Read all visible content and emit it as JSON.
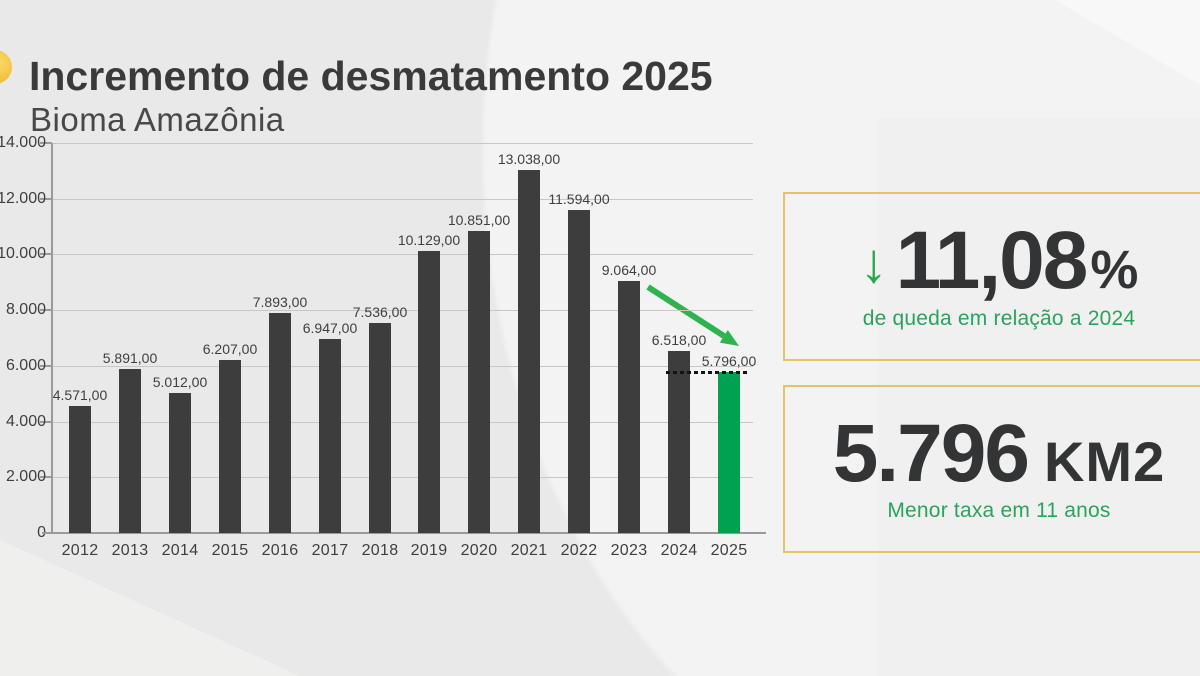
{
  "header": {
    "title": "Incremento de desmatamento 2025",
    "subtitle": "Bioma Amazônia"
  },
  "chart_data": {
    "type": "bar",
    "title": "Incremento de desmatamento 2025 - Bioma Amazônia",
    "xlabel": "",
    "ylabel": "",
    "categories": [
      "2012",
      "2013",
      "2014",
      "2015",
      "2016",
      "2017",
      "2018",
      "2019",
      "2020",
      "2021",
      "2022",
      "2023",
      "2024",
      "2025"
    ],
    "values": [
      4571,
      5891,
      5012,
      6207,
      7893,
      6947,
      7536,
      10129,
      10851,
      13038,
      11594,
      9064,
      6518,
      5796
    ],
    "bar_labels": [
      "4.571,00",
      "5.891,00",
      "5.012,00",
      "6.207,00",
      "7.893,00",
      "6.947,00",
      "7.536,00",
      "10.129,00",
      "10.851,00",
      "13.038,00",
      "11.594,00",
      "9.064,00",
      "6.518,00",
      "5.796,00"
    ],
    "ylim": [
      0,
      14000
    ],
    "y_ticks": [
      {
        "value": 0,
        "label": "0"
      },
      {
        "value": 2000,
        "label": "2.000"
      },
      {
        "value": 4000,
        "label": "4.000"
      },
      {
        "value": 6000,
        "label": "6.000"
      },
      {
        "value": 8000,
        "label": "8.000"
      },
      {
        "value": 10000,
        "label": "10.000"
      },
      {
        "value": 12000,
        "label": "12.000"
      },
      {
        "value": 14000,
        "label": "14.000"
      }
    ],
    "grid": true,
    "legend": false,
    "highlight_category": "2025",
    "annotations": {
      "reference_line_value": 5796,
      "trend_arrow": {
        "from_category": "2023",
        "to_category": "2025",
        "direction": "down"
      }
    }
  },
  "stat_cards": [
    {
      "icon": "down-arrow",
      "icon_glyph": "↓",
      "value": "11,08",
      "unit": "%",
      "caption": "de queda em relação a 2024"
    },
    {
      "icon": "",
      "icon_glyph": "",
      "value": "5.796",
      "unit": "KM2",
      "caption": "Menor taxa em 11 anos"
    }
  ],
  "colors": {
    "background": "#e8e9e8",
    "bar": "#3d3d3d",
    "bar_highlight": "#00a24f",
    "arrow_green": "#2eb34f",
    "grid": "#c7c7c7",
    "axis": "#9a9a9a",
    "text_dark": "#3f3f3f",
    "card_border": "#e2c55e",
    "green_text": "#2aa45c",
    "stat_number": "#323435",
    "logo_yellow": "#f2c238"
  }
}
